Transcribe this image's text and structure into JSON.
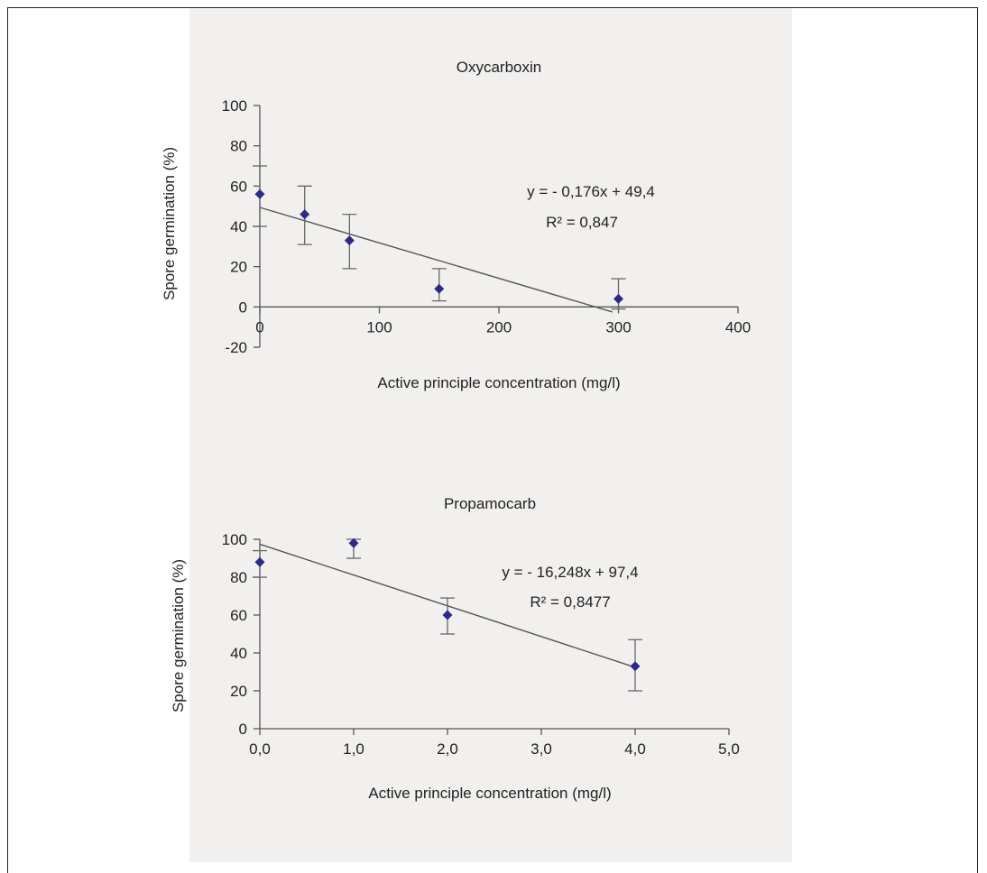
{
  "chart_data": [
    {
      "type": "scatter",
      "title": "Oxycarboxin",
      "xlabel": "Active principle concentration (mg/l)",
      "ylabel": "Spore germination (%)",
      "xlim": [
        0,
        400
      ],
      "ylim": [
        -20,
        100
      ],
      "x_ticks": [
        "0",
        "100",
        "200",
        "300",
        "400"
      ],
      "y_ticks": [
        "-20",
        "0",
        "20",
        "40",
        "60",
        "80",
        "100"
      ],
      "points": [
        {
          "x": 0,
          "y": 56,
          "err_low": 40,
          "err_high": 70
        },
        {
          "x": 37.5,
          "y": 46,
          "err_low": 31,
          "err_high": 60
        },
        {
          "x": 75,
          "y": 33,
          "err_low": 19,
          "err_high": 46
        },
        {
          "x": 150,
          "y": 9,
          "err_low": 3,
          "err_high": 19
        },
        {
          "x": 300,
          "y": 4,
          "err_low": -1,
          "err_high": 14
        }
      ],
      "trendline": {
        "slope": -0.176,
        "intercept": 49.4,
        "x_start": 0,
        "x_end": 295
      },
      "equation": "y = - 0,176x + 49,4",
      "r2_label": "R² = 0,847",
      "color": "#2b2a8c",
      "grid": false
    },
    {
      "type": "scatter",
      "title": "Propamocarb",
      "xlabel": "Active principle concentration (mg/l)",
      "ylabel": "Spore germination (%)",
      "xlim": [
        0,
        5
      ],
      "ylim": [
        0,
        100
      ],
      "x_ticks": [
        "0,0",
        "1,0",
        "2,0",
        "3,0",
        "4,0",
        "5,0"
      ],
      "y_ticks": [
        "0",
        "20",
        "40",
        "60",
        "80",
        "100"
      ],
      "points": [
        {
          "x": 0,
          "y": 88,
          "err_low": 80,
          "err_high": 94
        },
        {
          "x": 1,
          "y": 98,
          "err_low": 90,
          "err_high": 100
        },
        {
          "x": 2,
          "y": 60,
          "err_low": 50,
          "err_high": 69
        },
        {
          "x": 4,
          "y": 33,
          "err_low": 20,
          "err_high": 47
        }
      ],
      "trendline": {
        "slope": -16.248,
        "intercept": 97.4,
        "x_start": 0,
        "x_end": 4
      },
      "equation": "y = - 16,248x + 97,4",
      "r2_label": "R² = 0,8477",
      "color": "#2b2a8c",
      "grid": false
    }
  ]
}
